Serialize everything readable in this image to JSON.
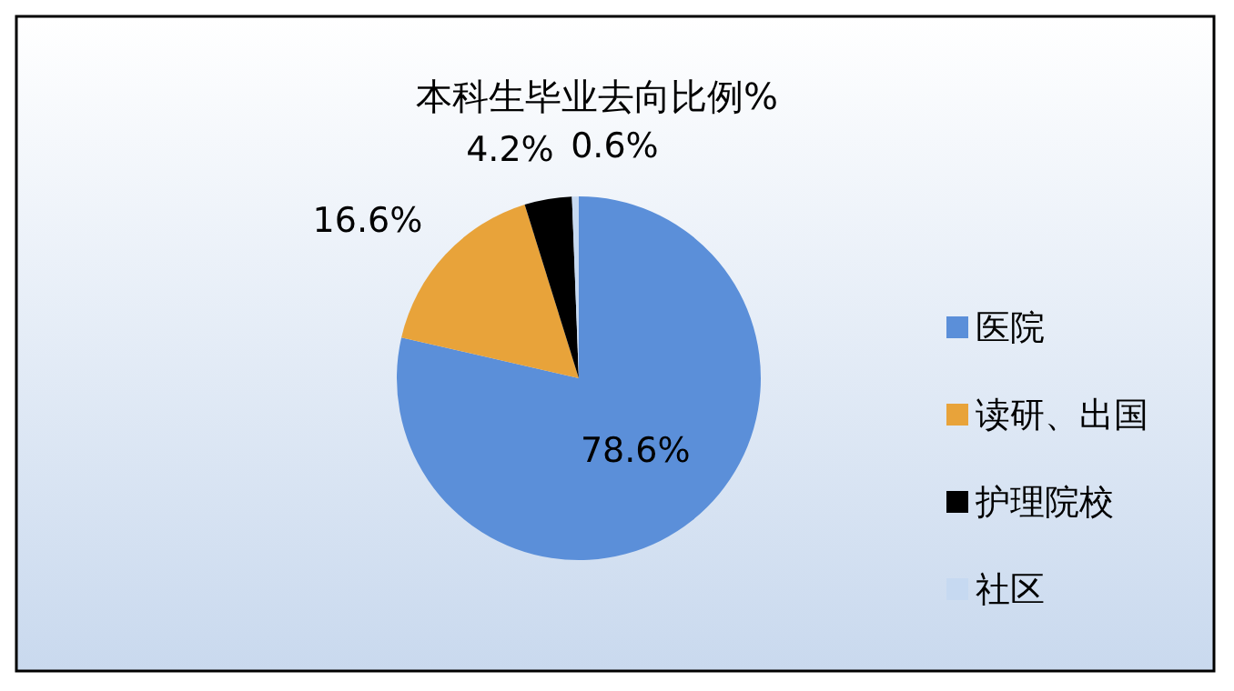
{
  "chart_data": {
    "type": "pie",
    "title": "本科生毕业去向比例%",
    "categories": [
      "医院",
      "读研、出国",
      "护理院校",
      "社区"
    ],
    "values": [
      78.6,
      16.6,
      4.2,
      0.6
    ],
    "colors": [
      "#5b8fd9",
      "#e8a33a",
      "#000000",
      "#c6d9f1"
    ],
    "value_labels": [
      "78.6%",
      "16.6%",
      "4.2%",
      "0.6%"
    ],
    "legend": "right"
  }
}
